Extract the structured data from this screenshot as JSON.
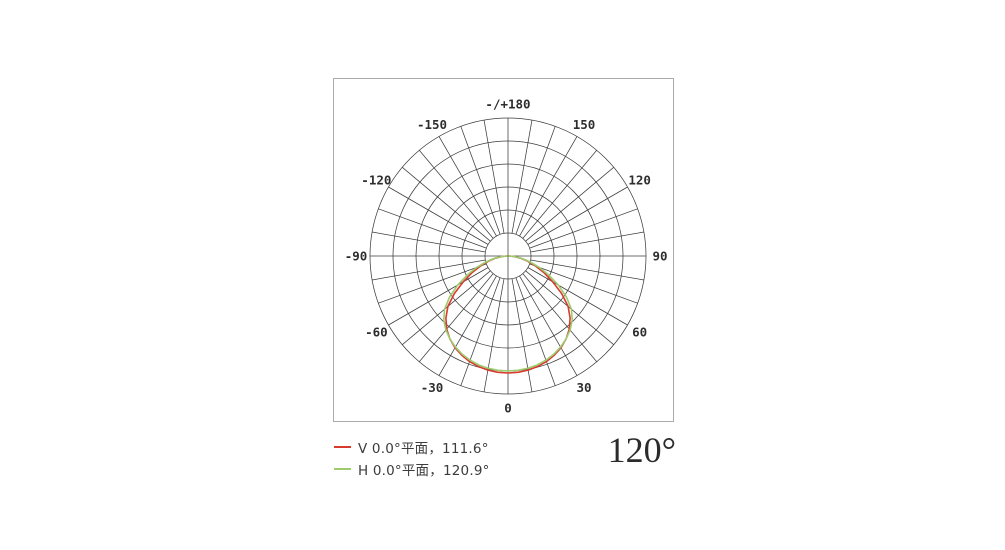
{
  "page": {
    "background": "#ffffff"
  },
  "chart_data": {
    "type": "polar-intensity-distribution",
    "title": "",
    "angle_unit": "degrees",
    "grid": {
      "rings": 6,
      "spoke_step_deg": 10,
      "inner_blank_ring": 1,
      "line_color": "#3d3d3d",
      "frame_color": "#ababab"
    },
    "angle_labels": [
      {
        "angle": 0,
        "text": "0"
      },
      {
        "angle": 30,
        "text": "30"
      },
      {
        "angle": 60,
        "text": "60"
      },
      {
        "angle": 90,
        "text": "90"
      },
      {
        "angle": 120,
        "text": "120"
      },
      {
        "angle": 150,
        "text": "150"
      },
      {
        "angle": 180,
        "text": "-/+180"
      },
      {
        "angle": -150,
        "text": "-150"
      },
      {
        "angle": -120,
        "text": "-120"
      },
      {
        "angle": -90,
        "text": "-90"
      },
      {
        "angle": -60,
        "text": "-60"
      },
      {
        "angle": -30,
        "text": "-30"
      }
    ],
    "series": [
      {
        "id": "v-plane",
        "name": "V 0.0°平面",
        "beam_angle_deg": 111.6,
        "color": "#d93a2e",
        "peak_fraction_of_outer_ring": 0.848,
        "profile_angles_deg": [
          0,
          5,
          10,
          15,
          20,
          25,
          30,
          35,
          40,
          45,
          50,
          55,
          60,
          65,
          70,
          75,
          80,
          85,
          90
        ],
        "relative_intensity": [
          1.0,
          0.998,
          0.99,
          0.978,
          0.96,
          0.935,
          0.905,
          0.865,
          0.815,
          0.75,
          0.67,
          0.56,
          0.44,
          0.34,
          0.25,
          0.175,
          0.11,
          0.05,
          0.01
        ]
      },
      {
        "id": "h-plane",
        "name": "H 0.0°平面",
        "beam_angle_deg": 120.9,
        "color": "#9ccc6c",
        "peak_fraction_of_outer_ring": 0.833,
        "profile_angles_deg": [
          0,
          5,
          10,
          15,
          20,
          25,
          30,
          35,
          40,
          45,
          50,
          55,
          60,
          65,
          70,
          75,
          80,
          85,
          90
        ],
        "relative_intensity": [
          1.0,
          0.998,
          0.992,
          0.982,
          0.965,
          0.943,
          0.915,
          0.88,
          0.84,
          0.79,
          0.72,
          0.62,
          0.505,
          0.39,
          0.29,
          0.2,
          0.125,
          0.055,
          0.01
        ]
      }
    ],
    "legend_position": "bottom-left"
  },
  "legend": {
    "items": [
      {
        "label": "V 0.0°平面，111.6°",
        "color": "#d93a2e"
      },
      {
        "label": "H 0.0°平面，120.9°",
        "color": "#9ccc6c"
      }
    ]
  },
  "beam_angle_display": "120°"
}
